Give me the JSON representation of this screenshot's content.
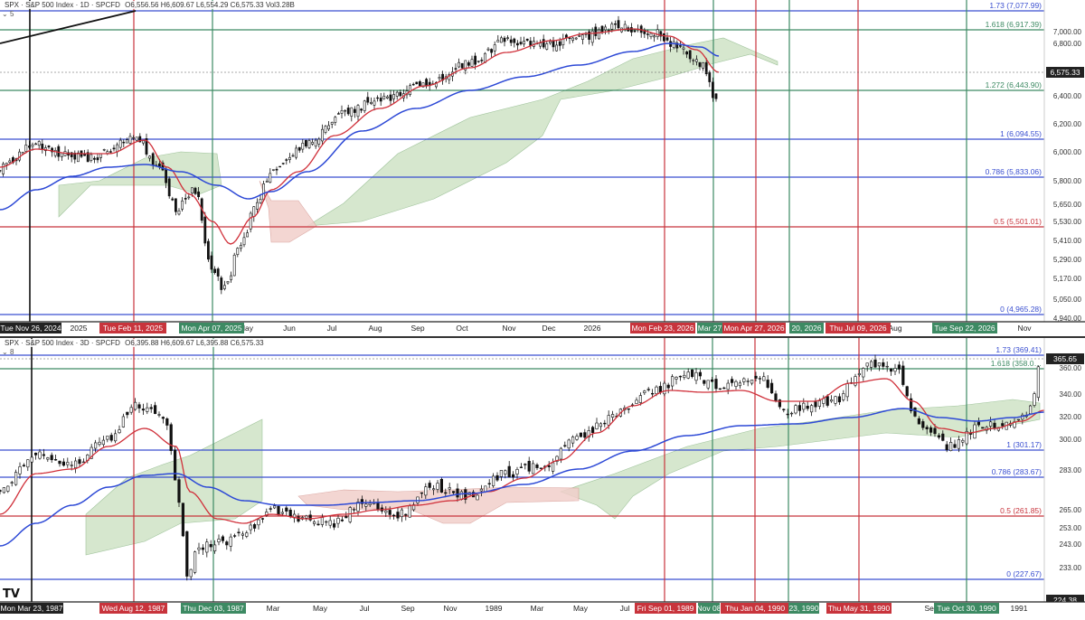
{
  "panels": [
    {
      "id": "daily",
      "header": {
        "symbol": "SPX · S&P 500 Index · 1D · SPCFD",
        "ohlc": "O6,556.56 H6,609.67 L6,554.29 C6,575.33 Vol3.28B",
        "indicator": "5"
      },
      "price_tag": "6,575.33",
      "price_ticks": [
        "7,000.00",
        "6,800.00",
        "6,600.00",
        "6,400.00",
        "6,200.00",
        "6,000.00",
        "5,800.00",
        "5,650.00",
        "5,530.00",
        "5,410.00",
        "5,290.00",
        "5,170.00",
        "5,050.00",
        "4,940.00"
      ],
      "fib_levels": [
        {
          "label": "1.73 (7,077.99)",
          "color": "#3a4fd0"
        },
        {
          "label": "1.618 (6,917.39)",
          "color": "#3d8a63"
        },
        {
          "label": "1.272 (6,443.90)",
          "color": "#3d8a63"
        },
        {
          "label": "1 (6,094.55)",
          "color": "#3a4fd0"
        },
        {
          "label": "0.786 (5,833.06)",
          "color": "#3a4fd0"
        },
        {
          "label": "0.5 (5,501.01)",
          "color": "#c8343c"
        },
        {
          "label": "0 (4,965.28)",
          "color": "#3a4fd0"
        }
      ],
      "months": [
        "2025",
        "May",
        "Jun",
        "Jul",
        "Aug",
        "Sep",
        "Oct",
        "Nov",
        "Dec",
        "2026",
        "Aug",
        "Nov"
      ],
      "date_tags": [
        {
          "label": "Tue Nov 26, 2024",
          "color": "#222"
        },
        {
          "label": "Tue Feb 11, 2025",
          "color": "#c8343c"
        },
        {
          "label": "Mon Apr 07, 2025",
          "color": "#3d8a63"
        },
        {
          "label": "Mon Feb 23, 2026",
          "color": "#c8343c"
        },
        {
          "label": "Mar 27",
          "color": "#3d8a63"
        },
        {
          "label": "Mon Apr 27, 2026",
          "color": "#c8343c"
        },
        {
          "label": "20, 2026",
          "color": "#3d8a63"
        },
        {
          "label": "Thu Jul 09, 2026",
          "color": "#c8343c"
        },
        {
          "label": "Tue Sep 22, 2026",
          "color": "#3d8a63"
        }
      ]
    },
    {
      "id": "threeday",
      "header": {
        "symbol": "SPX · S&P 500 Index · 3D · SPCFD",
        "ohlc": "O6,395.88 H6,609.67 L6,395.88 C6,575.33",
        "indicator": "8"
      },
      "price_tag": "365.65",
      "price_ticks": [
        "360.00",
        "340.00",
        "320.00",
        "300.00",
        "283.00",
        "265.00",
        "253.00",
        "243.00",
        "233.00"
      ],
      "bottom_tag": "224.38",
      "fib_levels": [
        {
          "label": "1.73 (369.41)",
          "color": "#3a4fd0"
        },
        {
          "label": "1.618 (358.0…",
          "color": "#3d8a63"
        },
        {
          "label": "1 (301.17)",
          "color": "#3a4fd0"
        },
        {
          "label": "0.786 (283.67)",
          "color": "#3a4fd0"
        },
        {
          "label": "0.5 (261.85)",
          "color": "#c8343c"
        },
        {
          "label": "0 (227.67)",
          "color": "#3a4fd0"
        }
      ],
      "months": [
        "Mar",
        "May",
        "Jul",
        "Sep",
        "Nov",
        "1989",
        "Mar",
        "May",
        "Jul",
        "Sep",
        "1991"
      ],
      "date_tags": [
        {
          "label": "Mon Mar 23, 1987",
          "color": "#222"
        },
        {
          "label": "Wed Aug 12, 1987",
          "color": "#c8343c"
        },
        {
          "label": "Thu Dec 03, 1987",
          "color": "#3d8a63"
        },
        {
          "label": "Fri Sep 01, 1989",
          "color": "#c8343c"
        },
        {
          "label": "Nov 08",
          "color": "#3d8a63"
        },
        {
          "label": "Thu Jan 04, 1990",
          "color": "#c8343c"
        },
        {
          "label": "23, 1990",
          "color": "#3d8a63"
        },
        {
          "label": "Thu May 31, 1990",
          "color": "#c8343c"
        },
        {
          "label": "Tue Oct 30, 1990",
          "color": "#3d8a63"
        }
      ]
    }
  ],
  "chart_data": [
    {
      "type": "candlestick",
      "title": "SPX · S&P 500 Index · 1D · SPCFD",
      "ylim": [
        4940,
        7000
      ],
      "y_scale": "log",
      "grid": false,
      "series": [
        {
          "name": "fib_levels",
          "values": [
            7077.99,
            6917.39,
            6443.9,
            6094.55,
            5833.06,
            5501.01,
            4965.28
          ]
        }
      ],
      "close": 6575.33
    },
    {
      "type": "candlestick",
      "title": "SPX · S&P 500 Index · 3D · SPCFD",
      "ylim": [
        224.38,
        369.41
      ],
      "y_scale": "log",
      "grid": false,
      "series": [
        {
          "name": "fib_levels",
          "values": [
            369.41,
            358.0,
            301.17,
            283.67,
            261.85,
            227.67
          ]
        }
      ],
      "close": 365.65
    }
  ],
  "colors": {
    "blue": "#3a4fd0",
    "green": "#3d8a63",
    "red": "#c8343c",
    "cloud_green": "#cfe3c6",
    "cloud_red": "#f1cfcb",
    "ma_red": "#d0303a",
    "ma_blue": "#2d49d6"
  }
}
